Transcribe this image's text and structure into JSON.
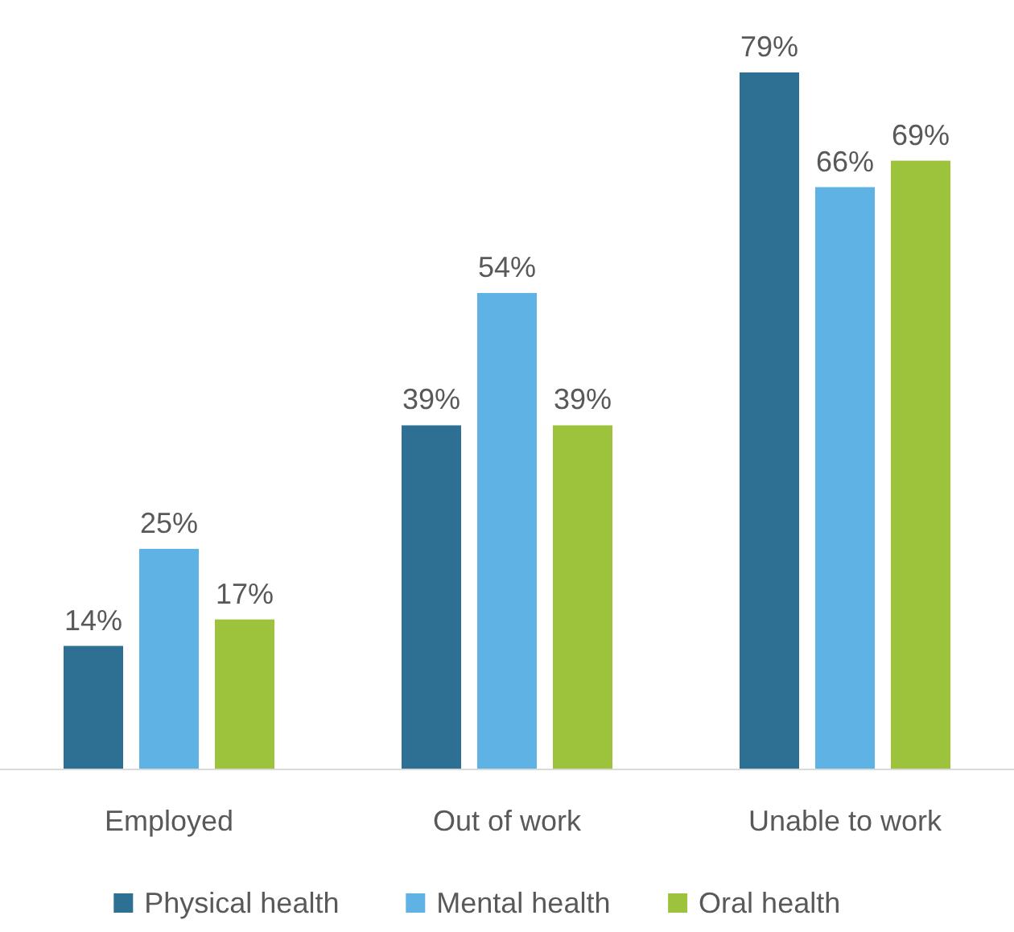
{
  "chart_data": {
    "type": "bar",
    "categories": [
      "Employed",
      "Out of work",
      "Unable to work"
    ],
    "series": [
      {
        "name": "Physical health",
        "color": "#2e6f94",
        "values": [
          14,
          39,
          79
        ],
        "value_labels": [
          "14%",
          "39%",
          "79%"
        ]
      },
      {
        "name": "Mental health",
        "color": "#5eb3e4",
        "values": [
          25,
          54,
          66
        ],
        "value_labels": [
          "25%",
          "54%",
          "66%"
        ]
      },
      {
        "name": "Oral health",
        "color": "#9dc23b",
        "values": [
          17,
          39,
          69
        ],
        "value_labels": [
          "17%",
          "39%",
          "69%"
        ]
      }
    ],
    "legend": "bottom"
  }
}
